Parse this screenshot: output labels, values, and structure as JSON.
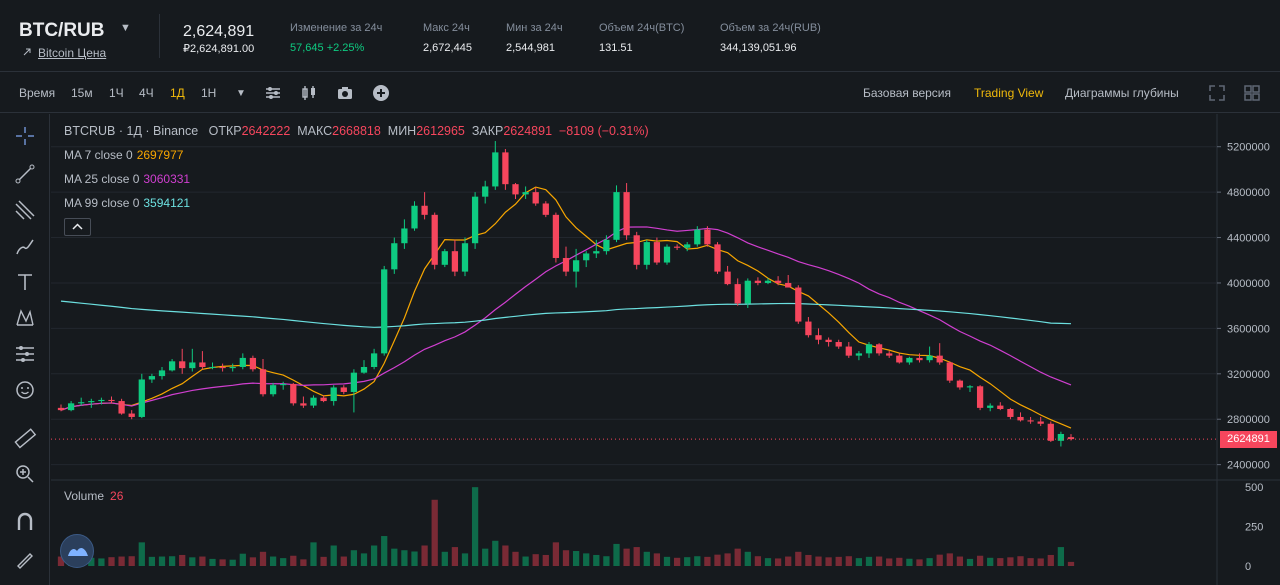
{
  "header": {
    "pair": "BTC/RUB",
    "sub_link": "Bitcoin Цена",
    "price": "2,624,891",
    "price_fiat": "₽2,624,891.00",
    "stats": [
      {
        "label": "Изменение за 24ч",
        "value": "57,645 +2.25%",
        "positive": true
      },
      {
        "label": "Макс 24ч",
        "value": "2,672,445",
        "positive": false
      },
      {
        "label": "Мин за 24ч",
        "value": "2,544,981",
        "positive": false
      },
      {
        "label": "Объем 24ч(BTC)",
        "value": "131.51",
        "positive": false
      },
      {
        "label": "Объем за 24ч(RUB)",
        "value": "344,139,051.96",
        "positive": false
      }
    ]
  },
  "toolbar": {
    "time_label": "Время",
    "intervals": [
      "15м",
      "1Ч",
      "4Ч",
      "1Д",
      "1Н"
    ],
    "active_interval": "1Д",
    "views": [
      "Базовая версия",
      "Trading View",
      "Диаграммы глубины"
    ],
    "active_view": "Trading View"
  },
  "left_tools": [
    "crosshair-icon",
    "trend-line-icon",
    "fib-icon",
    "brush-icon",
    "text-icon",
    "pattern-icon",
    "measure-icon",
    "emoji-icon",
    "ruler-icon",
    "zoom-icon",
    "magnet-icon",
    "lock-drawing-icon"
  ],
  "legend": {
    "symbol": "BTCRUB · 1Д · Binance",
    "open_label": "ОТКР",
    "open": "2642222",
    "high_label": "МАКС",
    "high": "2668818",
    "low_label": "МИН",
    "low": "2612965",
    "close_label": "ЗАКР",
    "close": "2624891",
    "change": "−8109 (−0.31%)",
    "ma": [
      {
        "label": "MA 7 close 0",
        "value": "2697977",
        "color": "#f7a600"
      },
      {
        "label": "MA 25 close 0",
        "value": "3060331",
        "color": "#d03fd0"
      },
      {
        "label": "MA 99 close 0",
        "value": "3594121",
        "color": "#6ce0e0"
      }
    ],
    "volume_label": "Volume",
    "volume_value": "26"
  },
  "colors": {
    "up": "#0ecb81",
    "down": "#f6465d",
    "bg": "#161a1e",
    "grid": "#22272e"
  },
  "chart_data": {
    "type": "candlestick",
    "price_axis": {
      "ylim": [
        2300000,
        5400000
      ],
      "ticks": [
        "2400000",
        "2800000",
        "3200000",
        "3600000",
        "4000000",
        "4400000",
        "4800000",
        "5200000"
      ]
    },
    "volume_axis": {
      "ylim": [
        0,
        520
      ],
      "ticks": [
        "0",
        "250",
        "500"
      ]
    },
    "last_price_label": "2624891",
    "candles": [
      [
        2900000,
        2930000,
        2870000,
        2880000,
        60
      ],
      [
        2880000,
        2960000,
        2870000,
        2940000,
        55
      ],
      [
        2940000,
        2990000,
        2920000,
        2950000,
        65
      ],
      [
        2950000,
        2980000,
        2900000,
        2960000,
        52
      ],
      [
        2960000,
        2990000,
        2930000,
        2970000,
        48
      ],
      [
        2970000,
        3000000,
        2940000,
        2960000,
        56
      ],
      [
        2960000,
        2980000,
        2840000,
        2850000,
        60
      ],
      [
        2850000,
        2880000,
        2800000,
        2820000,
        62
      ],
      [
        2820000,
        3200000,
        2810000,
        3150000,
        150
      ],
      [
        3150000,
        3200000,
        3120000,
        3180000,
        58
      ],
      [
        3180000,
        3260000,
        3150000,
        3230000,
        60
      ],
      [
        3230000,
        3330000,
        3220000,
        3310000,
        62
      ],
      [
        3310000,
        3420000,
        3200000,
        3250000,
        70
      ],
      [
        3250000,
        3420000,
        3220000,
        3300000,
        55
      ],
      [
        3300000,
        3400000,
        3240000,
        3260000,
        60
      ],
      [
        3260000,
        3300000,
        3240000,
        3260000,
        45
      ],
      [
        3260000,
        3290000,
        3220000,
        3250000,
        42
      ],
      [
        3250000,
        3290000,
        3220000,
        3260000,
        40
      ],
      [
        3260000,
        3380000,
        3240000,
        3340000,
        78
      ],
      [
        3340000,
        3360000,
        3220000,
        3240000,
        55
      ],
      [
        3240000,
        3330000,
        3000000,
        3020000,
        90
      ],
      [
        3020000,
        3120000,
        3000000,
        3100000,
        60
      ],
      [
        3100000,
        3130000,
        3060000,
        3110000,
        50
      ],
      [
        3110000,
        3120000,
        2920000,
        2940000,
        65
      ],
      [
        2940000,
        3000000,
        2900000,
        2920000,
        42
      ],
      [
        2920000,
        3010000,
        2900000,
        2990000,
        150
      ],
      [
        2990000,
        3010000,
        2950000,
        2960000,
        58
      ],
      [
        2960000,
        3100000,
        2920000,
        3080000,
        130
      ],
      [
        3080000,
        3100000,
        3020000,
        3040000,
        60
      ],
      [
        3040000,
        3240000,
        2860000,
        3210000,
        100
      ],
      [
        3210000,
        3320000,
        3200000,
        3260000,
        80
      ],
      [
        3260000,
        3420000,
        3240000,
        3380000,
        130
      ],
      [
        3380000,
        4150000,
        3360000,
        4120000,
        190
      ],
      [
        4120000,
        4400000,
        4080000,
        4350000,
        110
      ],
      [
        4350000,
        4560000,
        4300000,
        4480000,
        100
      ],
      [
        4480000,
        4720000,
        4460000,
        4680000,
        92
      ],
      [
        4680000,
        4800000,
        4560000,
        4600000,
        130
      ],
      [
        4600000,
        4620000,
        4120000,
        4160000,
        420
      ],
      [
        4160000,
        4300000,
        4140000,
        4280000,
        90
      ],
      [
        4280000,
        4380000,
        4060000,
        4100000,
        120
      ],
      [
        4100000,
        4400000,
        4060000,
        4350000,
        80
      ],
      [
        4350000,
        4800000,
        4300000,
        4760000,
        500
      ],
      [
        4760000,
        4900000,
        4700000,
        4850000,
        110
      ],
      [
        4850000,
        5250000,
        4820000,
        5150000,
        160
      ],
      [
        5150000,
        5180000,
        4820000,
        4870000,
        130
      ],
      [
        4870000,
        4880000,
        4740000,
        4780000,
        90
      ],
      [
        4780000,
        4850000,
        4740000,
        4800000,
        60
      ],
      [
        4800000,
        4840000,
        4680000,
        4700000,
        75
      ],
      [
        4700000,
        4720000,
        4580000,
        4600000,
        70
      ],
      [
        4600000,
        4620000,
        4180000,
        4220000,
        150
      ],
      [
        4220000,
        4320000,
        4060000,
        4100000,
        100
      ],
      [
        4100000,
        4300000,
        3960000,
        4200000,
        95
      ],
      [
        4200000,
        4280000,
        4140000,
        4260000,
        80
      ],
      [
        4260000,
        4380000,
        4220000,
        4280000,
        70
      ],
      [
        4280000,
        4420000,
        4250000,
        4380000,
        62
      ],
      [
        4380000,
        4860000,
        4360000,
        4800000,
        140
      ],
      [
        4800000,
        4880000,
        4380000,
        4420000,
        110
      ],
      [
        4420000,
        4450000,
        4120000,
        4160000,
        120
      ],
      [
        4160000,
        4380000,
        4120000,
        4360000,
        90
      ],
      [
        4360000,
        4400000,
        4160000,
        4180000,
        80
      ],
      [
        4180000,
        4340000,
        4160000,
        4320000,
        58
      ],
      [
        4320000,
        4340000,
        4290000,
        4310000,
        52
      ],
      [
        4310000,
        4360000,
        4280000,
        4340000,
        56
      ],
      [
        4340000,
        4500000,
        4320000,
        4470000,
        62
      ],
      [
        4470000,
        4500000,
        4320000,
        4340000,
        58
      ],
      [
        4340000,
        4360000,
        4080000,
        4100000,
        72
      ],
      [
        4100000,
        4150000,
        3980000,
        3990000,
        80
      ],
      [
        3990000,
        4040000,
        3800000,
        3820000,
        110
      ],
      [
        3820000,
        4040000,
        3780000,
        4020000,
        90
      ],
      [
        4020000,
        4050000,
        3980000,
        4000000,
        62
      ],
      [
        4000000,
        4040000,
        3990000,
        4020000,
        50
      ],
      [
        4020000,
        4060000,
        3980000,
        4000000,
        48
      ],
      [
        4000000,
        4070000,
        3960000,
        3960000,
        60
      ],
      [
        3960000,
        3980000,
        3640000,
        3660000,
        90
      ],
      [
        3660000,
        3700000,
        3520000,
        3540000,
        70
      ],
      [
        3540000,
        3600000,
        3460000,
        3500000,
        60
      ],
      [
        3500000,
        3520000,
        3440000,
        3480000,
        55
      ],
      [
        3480000,
        3500000,
        3420000,
        3440000,
        58
      ],
      [
        3440000,
        3480000,
        3340000,
        3360000,
        62
      ],
      [
        3360000,
        3400000,
        3320000,
        3380000,
        50
      ],
      [
        3380000,
        3480000,
        3340000,
        3460000,
        58
      ],
      [
        3460000,
        3470000,
        3360000,
        3380000,
        60
      ],
      [
        3380000,
        3400000,
        3340000,
        3360000,
        48
      ],
      [
        3360000,
        3380000,
        3290000,
        3300000,
        52
      ],
      [
        3300000,
        3350000,
        3280000,
        3340000,
        46
      ],
      [
        3340000,
        3380000,
        3300000,
        3320000,
        42
      ],
      [
        3320000,
        3440000,
        3300000,
        3360000,
        50
      ],
      [
        3360000,
        3470000,
        3280000,
        3300000,
        72
      ],
      [
        3300000,
        3310000,
        3120000,
        3140000,
        80
      ],
      [
        3140000,
        3150000,
        3060000,
        3080000,
        60
      ],
      [
        3080000,
        3100000,
        3040000,
        3090000,
        45
      ],
      [
        3090000,
        3100000,
        2880000,
        2900000,
        65
      ],
      [
        2900000,
        2940000,
        2870000,
        2920000,
        52
      ],
      [
        2920000,
        2950000,
        2880000,
        2890000,
        50
      ],
      [
        2890000,
        2900000,
        2800000,
        2820000,
        55
      ],
      [
        2820000,
        2860000,
        2780000,
        2790000,
        62
      ],
      [
        2790000,
        2820000,
        2760000,
        2780000,
        50
      ],
      [
        2780000,
        2820000,
        2740000,
        2760000,
        48
      ],
      [
        2760000,
        2780000,
        2600000,
        2610000,
        70
      ],
      [
        2610000,
        2690000,
        2560000,
        2670000,
        120
      ],
      [
        2642222,
        2668818,
        2612965,
        2624891,
        26
      ]
    ]
  }
}
